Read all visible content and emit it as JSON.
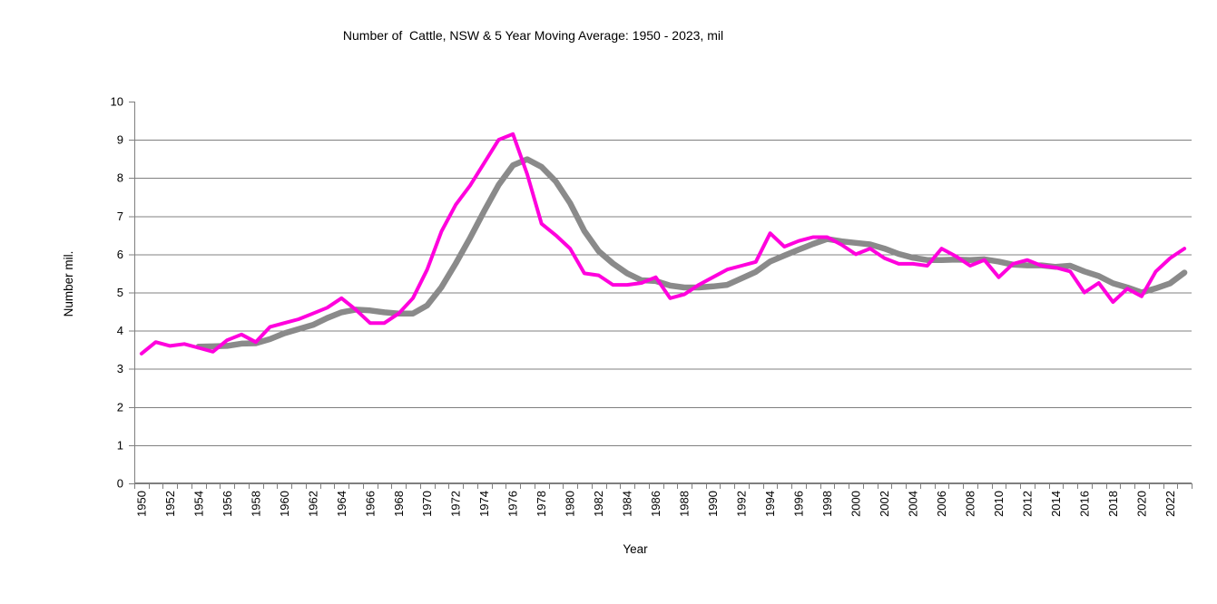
{
  "chart": {
    "title": "Number of  Cattle, NSW & 5 Year Moving Average: 1950 - 2023, mil",
    "xlabel": "Year",
    "ylabel": "Number mil."
  },
  "chart_data": {
    "type": "line",
    "title": "Number of  Cattle, NSW & 5 Year Moving Average: 1950 - 2023, mil",
    "xlabel": "Year",
    "ylabel": "Number mil.",
    "x_start": 1950,
    "x_end": 2023,
    "ylim": [
      0,
      10
    ],
    "grid": "horizontal",
    "legend": "none",
    "y_ticks": [
      0,
      1,
      2,
      3,
      4,
      5,
      6,
      7,
      8,
      9,
      10
    ],
    "x_tick_labels": [
      "1950",
      "1952",
      "1954",
      "1956",
      "1958",
      "1960",
      "1962",
      "1964",
      "1966",
      "1968",
      "1970",
      "1972",
      "1974",
      "1976",
      "1978",
      "1980",
      "1982",
      "1984",
      "1986",
      "1988",
      "1990",
      "1992",
      "1994",
      "1996",
      "1998",
      "2000",
      "2002",
      "2004",
      "2006",
      "2008",
      "2010",
      "2012",
      "2014",
      "2016",
      "2018",
      "2020",
      "2022"
    ],
    "colors": {
      "annual": "#ff00dd",
      "moving_average": "#8a8a8a",
      "gridline": "#808080",
      "axis": "#7f7f7f",
      "text": "#000000",
      "background": "#ffffff"
    },
    "series": [
      {
        "name": "Number of Cattle, NSW",
        "color_key": "annual",
        "stroke_width": 4,
        "values": [
          3.4,
          3.7,
          3.6,
          3.65,
          3.55,
          3.45,
          3.75,
          3.9,
          3.7,
          4.1,
          4.2,
          4.3,
          4.45,
          4.6,
          4.85,
          4.55,
          4.2,
          4.2,
          4.45,
          4.85,
          5.6,
          6.6,
          7.3,
          7.8,
          8.4,
          9.0,
          9.15,
          8.1,
          6.8,
          6.5,
          6.15,
          5.5,
          5.45,
          5.2,
          5.2,
          5.25,
          5.4,
          4.85,
          4.95,
          5.2,
          5.4,
          5.6,
          5.7,
          5.8,
          6.55,
          6.2,
          6.35,
          6.45,
          6.45,
          6.25,
          6.0,
          6.15,
          5.9,
          5.75,
          5.75,
          5.7,
          6.15,
          5.95,
          5.7,
          5.85,
          5.4,
          5.75,
          5.85,
          5.7,
          5.65,
          5.55,
          5.0,
          5.25,
          4.75,
          5.1,
          4.9,
          5.55,
          5.9,
          6.15
        ]
      },
      {
        "name": "5 Year Moving Average",
        "color_key": "moving_average",
        "stroke_width": 6.5,
        "values": [
          null,
          null,
          null,
          null,
          3.58,
          3.59,
          3.6,
          3.66,
          3.67,
          3.78,
          3.93,
          4.04,
          4.15,
          4.33,
          4.48,
          4.55,
          4.53,
          4.48,
          4.45,
          4.45,
          4.66,
          5.14,
          5.76,
          6.43,
          7.14,
          7.82,
          8.33,
          8.49,
          8.29,
          7.91,
          7.34,
          6.61,
          6.08,
          5.76,
          5.5,
          5.32,
          5.3,
          5.18,
          5.13,
          5.13,
          5.16,
          5.2,
          5.37,
          5.54,
          5.81,
          5.97,
          6.12,
          6.27,
          6.4,
          6.34,
          6.3,
          6.26,
          6.15,
          6.01,
          5.91,
          5.85,
          5.85,
          5.86,
          5.85,
          5.87,
          5.81,
          5.73,
          5.71,
          5.71,
          5.67,
          5.7,
          5.55,
          5.43,
          5.24,
          5.13,
          5.0,
          5.11,
          5.24,
          5.52
        ]
      }
    ]
  }
}
